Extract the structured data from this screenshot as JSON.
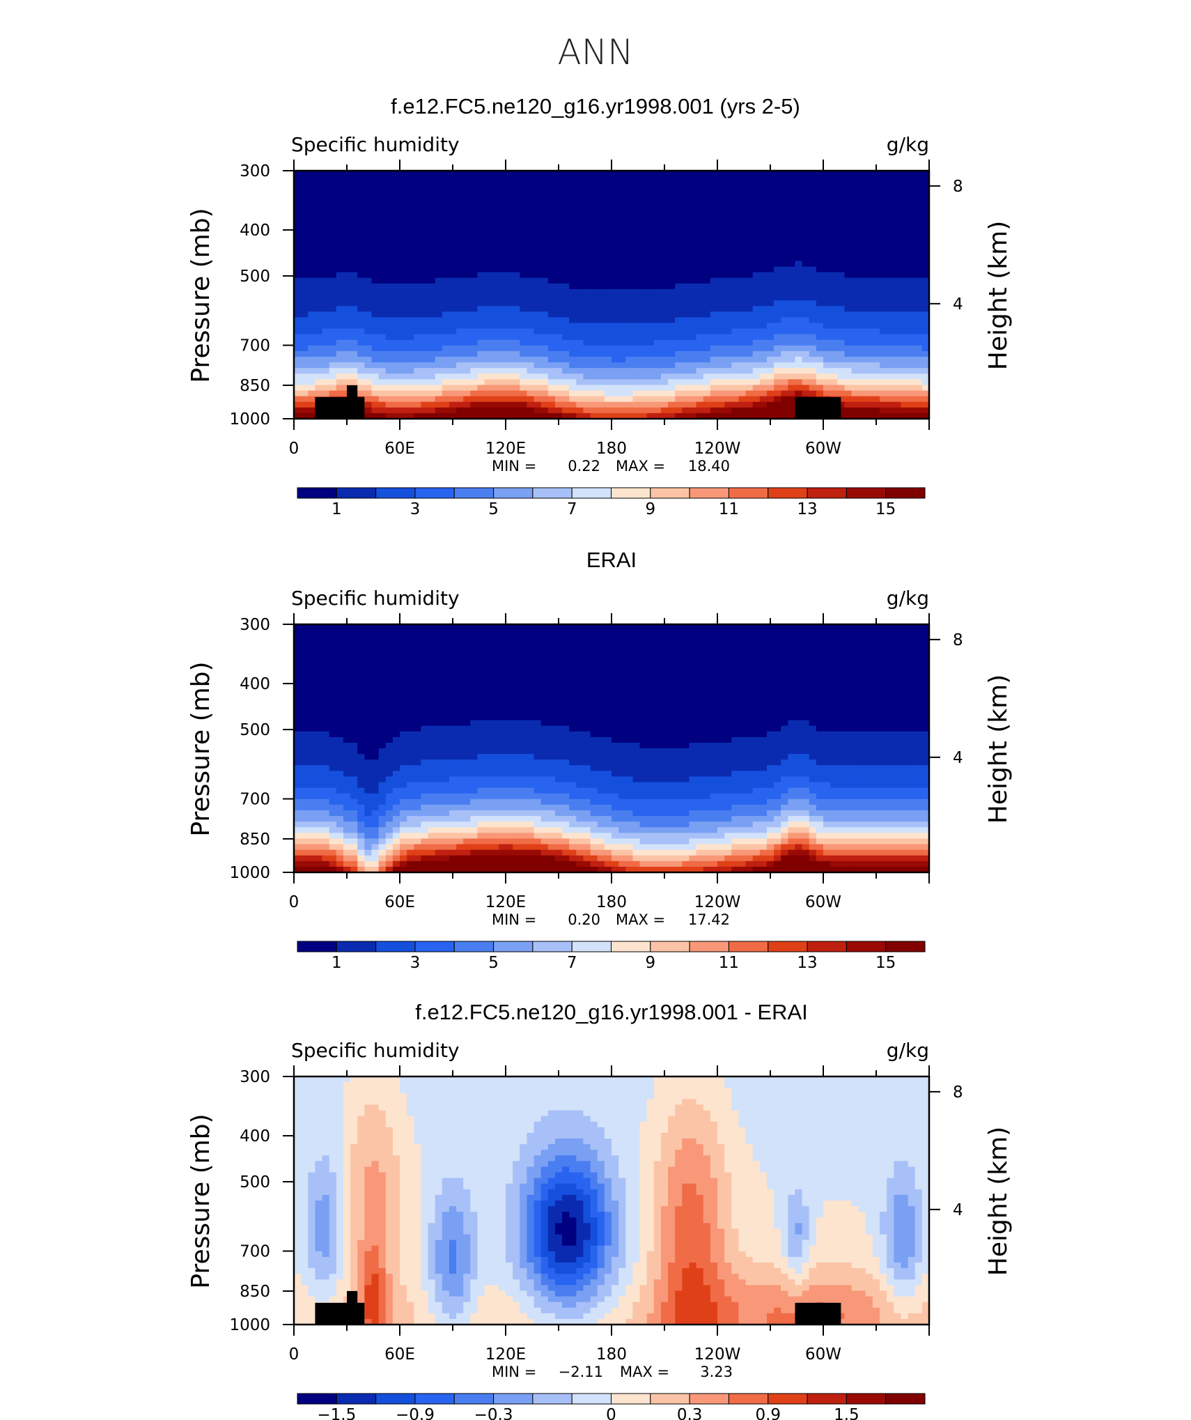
{
  "figure": {
    "title": "ANN"
  },
  "colormaps": {
    "abs": [
      "#000080",
      "#0a2bb0",
      "#1550dd",
      "#2864f0",
      "#4a7ef0",
      "#7aa0f4",
      "#a8c0f8",
      "#d2e2fa",
      "#fde4cf",
      "#fcc4a6",
      "#f89878",
      "#f06c46",
      "#e04018",
      "#c02010",
      "#9a0a05",
      "#800000"
    ],
    "diff": [
      "#000080",
      "#0a2bb0",
      "#1550dd",
      "#2864f0",
      "#4a7ef0",
      "#7aa0f4",
      "#a8c0f8",
      "#d2e2fa",
      "#fde4cf",
      "#fcc4a6",
      "#f89878",
      "#f06c46",
      "#e04018",
      "#c02010",
      "#9a0a05",
      "#800000"
    ]
  },
  "chart_data": [
    {
      "type": "heatmap",
      "id": "model",
      "title": "f.e12.FC5.ne120_g16.yr1998.001 (yrs 2-5)",
      "left_label": "Specific humidity",
      "right_label": "g/kg",
      "ylabel": "Pressure (mb)",
      "ylabel_right": "Height (km)",
      "x_ticks": [
        "0",
        "60E",
        "120E",
        "180",
        "120W",
        "60W"
      ],
      "y_ticks": [
        "300",
        "400",
        "500",
        "700",
        "850",
        "1000"
      ],
      "y_ticks_right": [
        "8",
        "4"
      ],
      "stats": {
        "min_label": "MIN =",
        "min": "0.22",
        "max_label": "MAX =",
        "max": "18.40"
      },
      "colorbar_ticks": [
        "1",
        "3",
        "5",
        "7",
        "9",
        "11",
        "13",
        "15"
      ],
      "colormap": "abs",
      "vmin": 0,
      "vmax": 16,
      "terrain": true
    },
    {
      "type": "heatmap",
      "id": "obs",
      "title": "ERAI",
      "left_label": "Specific humidity",
      "right_label": "g/kg",
      "ylabel": "Pressure (mb)",
      "ylabel_right": "Height (km)",
      "x_ticks": [
        "0",
        "60E",
        "120E",
        "180",
        "120W",
        "60W"
      ],
      "y_ticks": [
        "300",
        "400",
        "500",
        "700",
        "850",
        "1000"
      ],
      "y_ticks_right": [
        "8",
        "4"
      ],
      "stats": {
        "min_label": "MIN =",
        "min": "0.20",
        "max_label": "MAX =",
        "max": "17.42"
      },
      "colorbar_ticks": [
        "1",
        "3",
        "5",
        "7",
        "9",
        "11",
        "13",
        "15"
      ],
      "colormap": "abs",
      "vmin": 0,
      "vmax": 16,
      "terrain": false
    },
    {
      "type": "heatmap",
      "id": "diff",
      "title": "f.e12.FC5.ne120_g16.yr1998.001 - ERAI",
      "left_label": "Specific humidity",
      "right_label": "g/kg",
      "ylabel": "Pressure (mb)",
      "ylabel_right": "Height (km)",
      "x_ticks": [
        "0",
        "60E",
        "120E",
        "180",
        "120W",
        "60W"
      ],
      "y_ticks": [
        "300",
        "400",
        "500",
        "700",
        "850",
        "1000"
      ],
      "y_ticks_right": [
        "8",
        "4"
      ],
      "stats": {
        "min_label": "MIN =",
        "min": "−2.11",
        "max_label": "MAX =",
        "max": "3.23"
      },
      "colorbar_ticks": [
        "−1.5",
        "−0.9",
        "−0.3",
        "0",
        "0.3",
        "0.9",
        "1.5"
      ],
      "colormap": "diff",
      "vmin": -2.4,
      "vmax": 2.4,
      "terrain": true
    }
  ]
}
